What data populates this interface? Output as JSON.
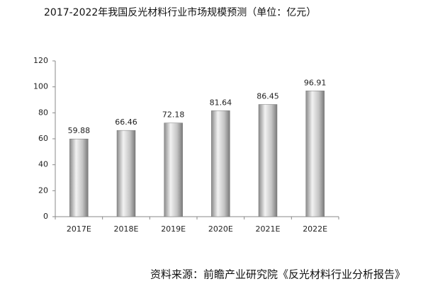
{
  "chart_data": {
    "type": "bar",
    "title": "2017-2022年我国反光材料行业市场规模预测（单位：亿元）",
    "categories": [
      "2017E",
      "2018E",
      "2019E",
      "2020E",
      "2021E",
      "2022E"
    ],
    "values": [
      59.88,
      66.46,
      72.18,
      81.64,
      86.45,
      96.91
    ],
    "color": "#b5b5b5",
    "ylim": [
      0,
      120
    ],
    "yticks": [
      0,
      20,
      40,
      60,
      80,
      100,
      120
    ],
    "grid": false,
    "source": "资料来源：前瞻产业研究院《反光材料行业分析报告》"
  }
}
